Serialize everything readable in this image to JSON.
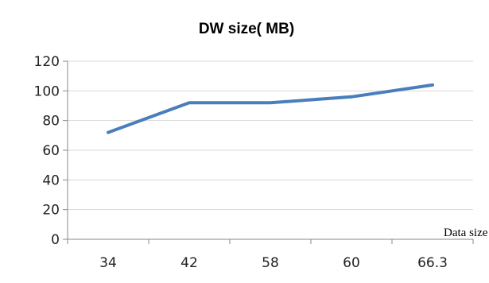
{
  "chart_data": {
    "type": "line",
    "title": "DW size( MB)",
    "xlabel": "Data size",
    "ylabel": "",
    "categories": [
      "34",
      "42",
      "58",
      "60",
      "66.3"
    ],
    "series": [
      {
        "values": [
          72,
          92,
          92,
          96,
          104
        ]
      }
    ],
    "ylim": [
      0,
      120
    ],
    "yticks": [
      "0",
      "20",
      "40",
      "60",
      "80",
      "100",
      "120"
    ],
    "grid": true,
    "legend": "none",
    "colors": {
      "line": "#4a7ebb",
      "grid": "#d9d9d9",
      "axis": "#888888"
    }
  }
}
